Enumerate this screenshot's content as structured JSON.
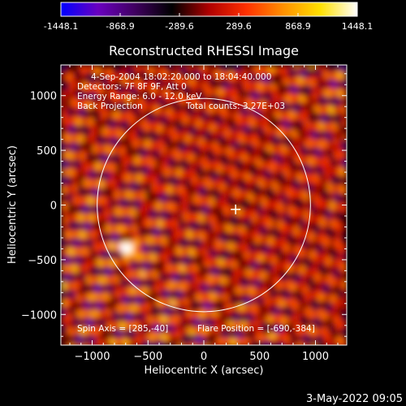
{
  "colorbar": {
    "ticks": [
      "-1448.1",
      "-868.9",
      "-289.6",
      "289.6",
      "868.9",
      "1448.1"
    ],
    "tick_values": [
      -1448.1,
      -868.9,
      -289.6,
      289.6,
      868.9,
      1448.1
    ],
    "range": [
      -1448.1,
      1448.1
    ],
    "colormap": "blue-purple-black-red-orange-yellow-white",
    "stops": [
      "#0000ff",
      "#6a00c0",
      "#400060",
      "#000000",
      "#b00000",
      "#ff3000",
      "#ff9000",
      "#ffe000",
      "#ffffff"
    ]
  },
  "chart_data": {
    "type": "heatmap",
    "title": "Reconstructed RHESSI Image",
    "xlabel": "Heliocentric X (arcsec)",
    "ylabel": "Heliocentric Y (arcsec)",
    "xlim": [
      -1280,
      1280
    ],
    "ylim": [
      -1280,
      1280
    ],
    "xticks": [
      -1000,
      -500,
      0,
      500,
      1000
    ],
    "yticks": [
      1000,
      500,
      0,
      -500,
      -1000
    ],
    "xtick_labels": [
      "−1000",
      "−500",
      "0",
      "500",
      "1000"
    ],
    "ytick_labels": [
      "1000",
      "500",
      "0",
      "−500",
      "−1000"
    ],
    "annotations": [
      "4-Sep-2004 18:02:20.000 to 18:04:40.000",
      "Detectors: 7F 8F 9F, Att 0",
      "Energy Range: 6.0 - 12.0 keV",
      "Back Projection",
      "Total counts: 3.27E+03"
    ],
    "spin_axis_label": "Spin Axis = [285,-40]",
    "flare_position_label": "Flare Position = [-690,-384]",
    "spin_axis": [
      285,
      -40
    ],
    "flare_position": [
      -690,
      -384
    ],
    "solar_limb_radius": 955,
    "bright_spot": [
      -690,
      -384
    ]
  },
  "footer": {
    "date": "3-May-2022 09:05"
  },
  "colors": {
    "background": "#000000",
    "text": "#ffffff",
    "limb": "#ffffff"
  }
}
